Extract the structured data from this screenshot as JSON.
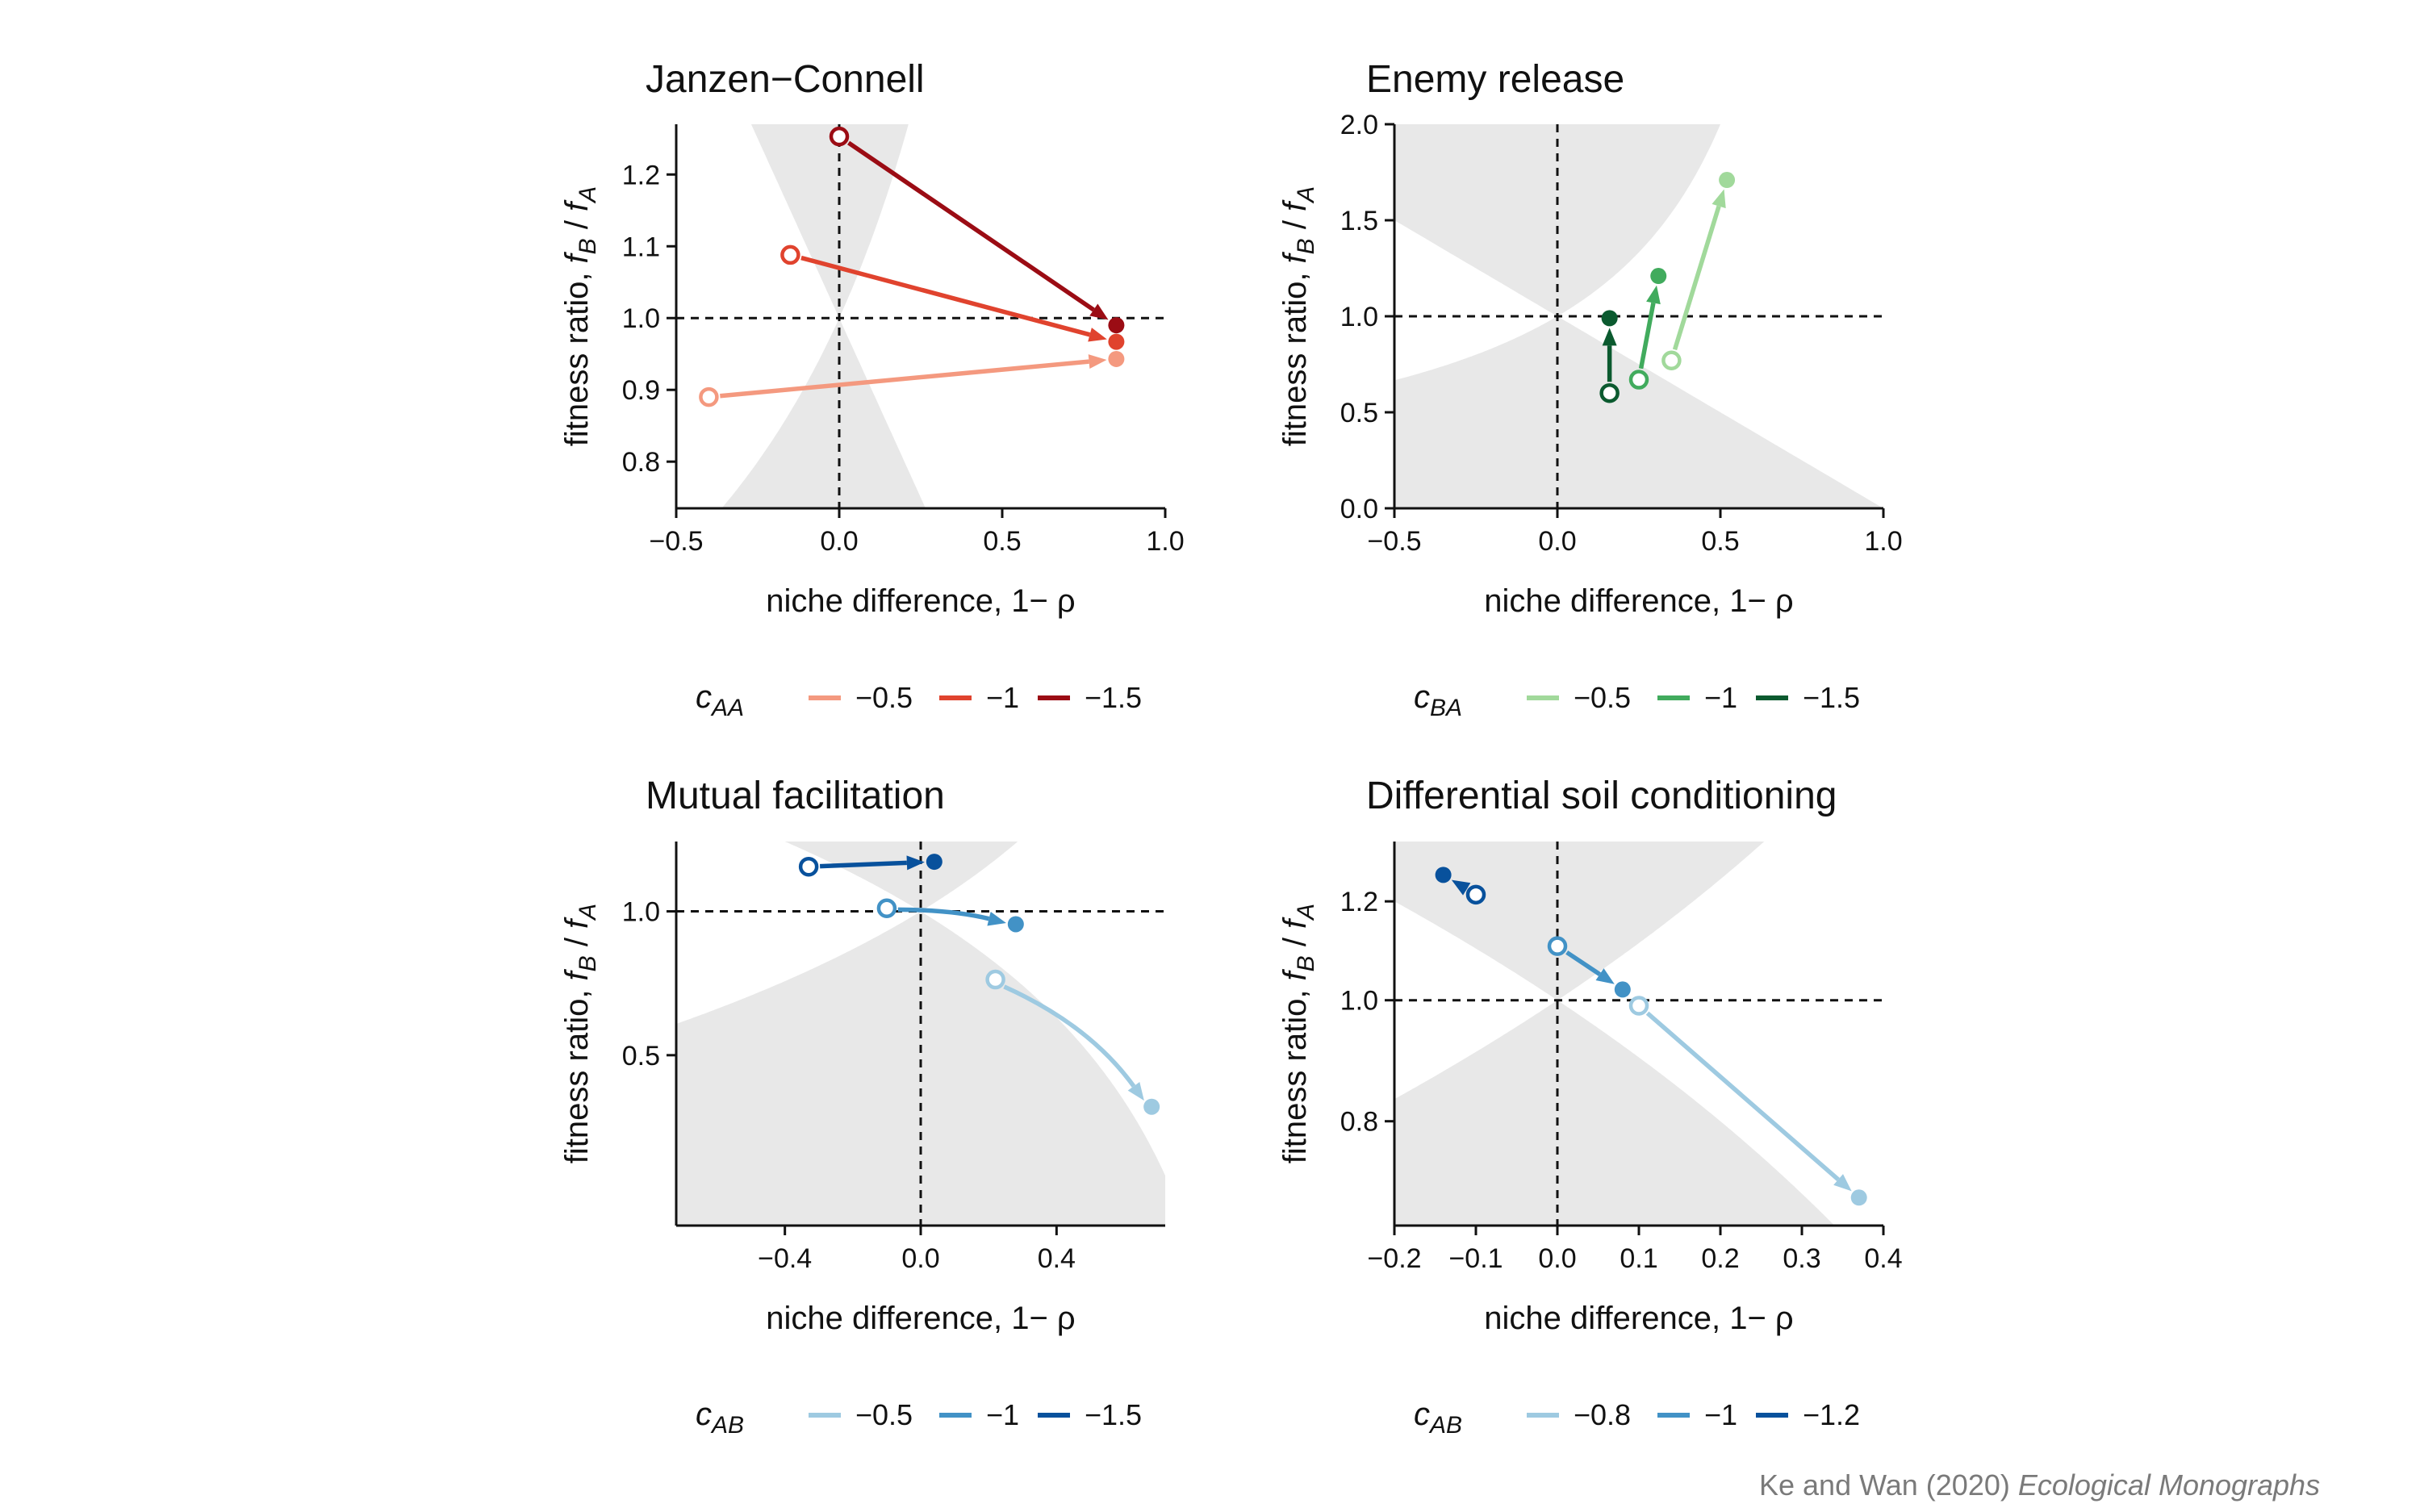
{
  "chart_data": [
    {
      "type": "scatter",
      "title": "Janzen−Connell",
      "xlabel": "niche difference, 1− ρ",
      "ylabel": "fitness ratio, f_B / f_A",
      "xlim": [
        -0.5,
        1.0
      ],
      "ylim": [
        0.735,
        1.27
      ],
      "xticks": [
        -0.5,
        0.0,
        0.5,
        1.0
      ],
      "xtick_labels": [
        "−0.5",
        "0.0",
        "0.5",
        "1.0"
      ],
      "yticks": [
        0.8,
        0.9,
        1.0,
        1.1,
        1.2
      ],
      "ytick_labels": [
        "0.8",
        "0.9",
        "1.0",
        "1.1",
        "1.2"
      ],
      "reflines": {
        "x": 0,
        "y": 1
      },
      "shading": "coexistence region bounded by ρ ≤ f_B/f_A ≤ 1/ρ (shown grey where outside)",
      "legend": {
        "symbol": "c",
        "subscript": "AA",
        "placement": "below"
      },
      "series": [
        {
          "name": "−0.5",
          "color": "#f4997f",
          "start": [
            -0.4,
            0.89
          ],
          "end": [
            0.85,
            0.943
          ],
          "curve": 0
        },
        {
          "name": "−1",
          "color": "#e0432e",
          "start": [
            -0.15,
            1.088
          ],
          "end": [
            0.85,
            0.967
          ],
          "curve": 0
        },
        {
          "name": "−1.5",
          "color": "#9b0c14",
          "start": [
            0.0,
            1.253
          ],
          "end": [
            0.85,
            0.99
          ],
          "curve": 0
        }
      ]
    },
    {
      "type": "scatter",
      "title": "Enemy release",
      "xlabel": "niche difference, 1− ρ",
      "ylabel": "fitness ratio, f_B / f_A",
      "xlim": [
        -0.5,
        1.0
      ],
      "ylim": [
        0.0,
        2.0
      ],
      "xticks": [
        -0.5,
        0.0,
        0.5,
        1.0
      ],
      "xtick_labels": [
        "−0.5",
        "0.0",
        "0.5",
        "1.0"
      ],
      "yticks": [
        0.0,
        0.5,
        1.0,
        1.5,
        2.0
      ],
      "ytick_labels": [
        "0.0",
        "0.5",
        "1.0",
        "1.5",
        "2.0"
      ],
      "reflines": {
        "x": 0,
        "y": 1
      },
      "legend": {
        "symbol": "c",
        "subscript": "BA",
        "placement": "below"
      },
      "series": [
        {
          "name": "−0.5",
          "color": "#a1d99b",
          "start": [
            0.35,
            0.77
          ],
          "end": [
            0.52,
            1.71
          ],
          "curve": 0
        },
        {
          "name": "−1",
          "color": "#41ab5d",
          "start": [
            0.25,
            0.67
          ],
          "end": [
            0.31,
            1.21
          ],
          "curve": 0
        },
        {
          "name": "−1.5",
          "color": "#0b5a2f",
          "start": [
            0.16,
            0.6
          ],
          "end": [
            0.16,
            0.99
          ],
          "curve": 0
        }
      ]
    },
    {
      "type": "scatter",
      "title": "Mutual facilitation",
      "xlabel": "niche difference, 1− ρ",
      "ylabel": "fitness ratio, f_B / f_A",
      "xlim": [
        -0.72,
        0.72
      ],
      "ylim": [
        0.22,
        1.4
      ],
      "yscale": "log",
      "xticks": [
        -0.4,
        0.0,
        0.4
      ],
      "xtick_labels": [
        "−0.4",
        "0.0",
        "0.4"
      ],
      "yticks": [
        0.5,
        1.0
      ],
      "ytick_labels": [
        "0.5",
        "1.0"
      ],
      "reflines": {
        "x": 0,
        "y": 1
      },
      "legend": {
        "symbol": "c",
        "subscript": "AB",
        "placement": "below"
      },
      "series": [
        {
          "name": "−0.5",
          "color": "#9ecae1",
          "start": [
            0.22,
            0.72
          ],
          "end": [
            0.68,
            0.39
          ],
          "curve": -0.12
        },
        {
          "name": "−1",
          "color": "#4292c6",
          "start": [
            -0.1,
            1.015
          ],
          "end": [
            0.28,
            0.94
          ],
          "curve": -0.05
        },
        {
          "name": "−1.5",
          "color": "#08519c",
          "start": [
            -0.33,
            1.24
          ],
          "end": [
            0.04,
            1.27
          ],
          "curve": 0
        }
      ]
    },
    {
      "type": "scatter",
      "title": "Differential soil conditioning",
      "xlabel": "niche difference, 1− ρ",
      "ylabel": "fitness ratio, f_B / f_A",
      "xlim": [
        -0.2,
        0.4
      ],
      "ylim": [
        0.66,
        1.34
      ],
      "yscale": "log",
      "xticks": [
        -0.2,
        -0.1,
        0.0,
        0.1,
        0.2,
        0.3,
        0.4
      ],
      "xtick_labels": [
        "−0.2",
        "−0.1",
        "0.0",
        "0.1",
        "0.2",
        "0.3",
        "0.4"
      ],
      "yticks": [
        0.8,
        1.0,
        1.2
      ],
      "ytick_labels": [
        "0.8",
        "1.0",
        "1.2"
      ],
      "reflines": {
        "x": 0,
        "y": 1
      },
      "legend": {
        "symbol": "c",
        "subscript": "AB",
        "placement": "below"
      },
      "series": [
        {
          "name": "−0.8",
          "color": "#9ecae1",
          "start": [
            0.1,
            0.99
          ],
          "end": [
            0.37,
            0.695
          ],
          "curve": 0
        },
        {
          "name": "−1",
          "color": "#4292c6",
          "start": [
            0.0,
            1.105
          ],
          "end": [
            0.08,
            1.02
          ],
          "curve": 0
        },
        {
          "name": "−1.2",
          "color": "#08519c",
          "start": [
            -0.1,
            1.215
          ],
          "end": [
            -0.14,
            1.26
          ],
          "curve": 0
        }
      ]
    }
  ],
  "credit": {
    "authors": "Ke and Wan (2020) ",
    "journal": "Ecological Monographs"
  },
  "colors": {
    "shade": "#e8e8e8",
    "axis": "#111111"
  }
}
